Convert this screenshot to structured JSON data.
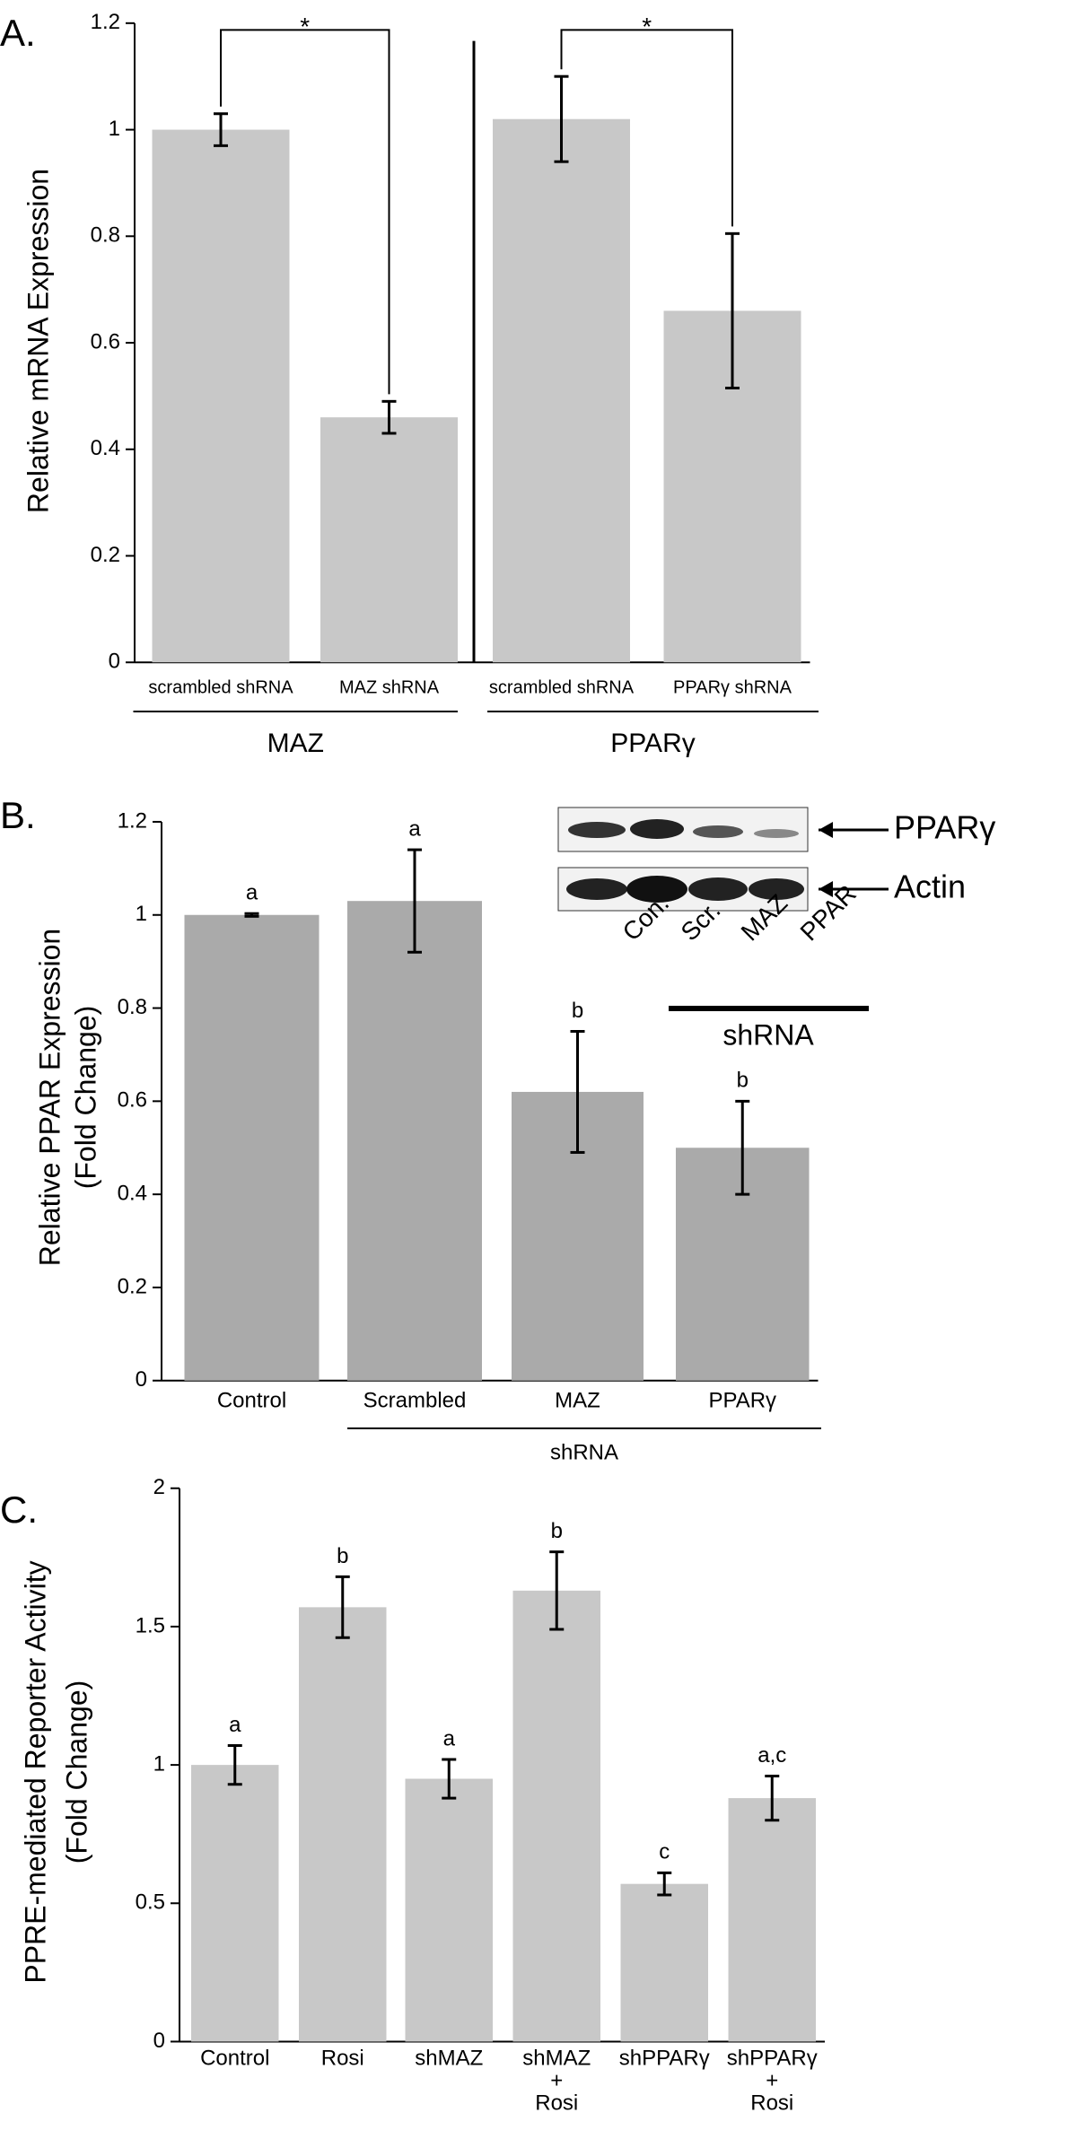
{
  "chart_data": [
    {
      "type": "bar",
      "panel": "A.",
      "ylabel": [
        "Relative mRNA Expression"
      ],
      "categories": [
        "scrambled shRNA",
        "MAZ shRNA",
        "scrambled shRNA",
        "PPARγ shRNA"
      ],
      "values": [
        1.0,
        0.46,
        1.02,
        0.66
      ],
      "errors": [
        0.03,
        0.03,
        0.08,
        0.145
      ],
      "groups": [
        "MAZ",
        "PPARγ"
      ],
      "annotations": [
        "*",
        "*"
      ],
      "color": "#c8c8c8",
      "ylim": [
        0,
        1.2
      ],
      "yticks": [
        0,
        0.2,
        0.4,
        0.6,
        0.8,
        1,
        1.2
      ]
    },
    {
      "type": "bar",
      "panel": "B.",
      "ylabel": [
        "Relative PPAR Expression",
        "(Fold Change)"
      ],
      "categories": [
        "Control",
        "Scrambled",
        "MAZ",
        "PPARγ"
      ],
      "values": [
        1.0,
        1.03,
        0.62,
        0.5
      ],
      "errors": [
        0.003,
        0.11,
        0.13,
        0.1
      ],
      "letters": [
        "a",
        "a",
        "b",
        "b"
      ],
      "groups": [
        "shRNA"
      ],
      "color": "#aaaaaa",
      "inset": {
        "bands": [
          "PPARγ",
          "Actin"
        ],
        "lanes": [
          "Con.",
          "Scr.",
          "MAZ",
          "PPAR"
        ],
        "group": "shRNA"
      },
      "ylim": [
        0,
        1.2
      ],
      "yticks": [
        0,
        0.2,
        0.4,
        0.6,
        0.8,
        1,
        1.2
      ]
    },
    {
      "type": "bar",
      "panel": "C.",
      "ylabel": [
        "PPRE-mediated Reporter Activity",
        "(Fold Change)"
      ],
      "categories": [
        [
          "Control"
        ],
        [
          "Rosi"
        ],
        [
          "shMAZ"
        ],
        [
          "shMAZ",
          "+",
          "Rosi"
        ],
        [
          "shPPARγ"
        ],
        [
          "shPPARγ",
          "+",
          "Rosi"
        ]
      ],
      "values": [
        1.0,
        1.57,
        0.95,
        1.63,
        0.57,
        0.88
      ],
      "errors": [
        0.07,
        0.11,
        0.07,
        0.14,
        0.04,
        0.08
      ],
      "letters": [
        "a",
        "b",
        "a",
        "b",
        "c",
        "a,c"
      ],
      "color": "#c8c8c8",
      "ylim": [
        0,
        2
      ],
      "yticks": [
        0,
        0.5,
        1,
        1.5,
        2
      ]
    }
  ]
}
